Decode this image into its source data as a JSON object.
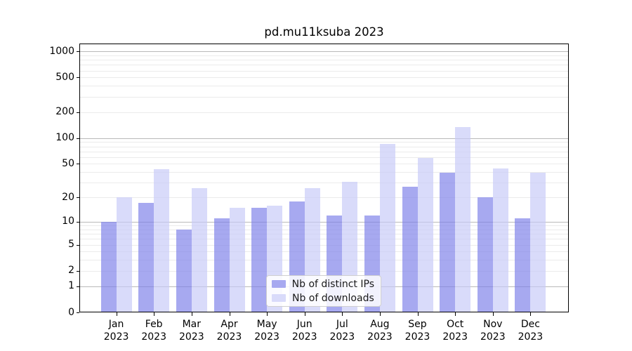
{
  "title": "pd.mu11ksuba 2023",
  "legend": {
    "items": [
      {
        "label": "Nb of distinct IPs",
        "color": "#a7a9f0"
      },
      {
        "label": "Nb of downloads",
        "color": "#d9dbfa"
      }
    ]
  },
  "chart_data": {
    "type": "bar",
    "title": "pd.mu11ksuba 2023",
    "categories": [
      "Jan 2023",
      "Feb 2023",
      "Mar 2023",
      "Apr 2023",
      "May 2023",
      "Jun 2023",
      "Jul 2023",
      "Aug 2023",
      "Sep 2023",
      "Oct 2023",
      "Nov 2023",
      "Dec 2023"
    ],
    "series": [
      {
        "name": "Nb of distinct IPs",
        "color": "#a7a9f0",
        "fill": "rgba(126,128,233,0.68)",
        "values": [
          10,
          17,
          8,
          11,
          15,
          18,
          12,
          12,
          27,
          39,
          20,
          11
        ]
      },
      {
        "name": "Nb of downloads",
        "color": "#d9dbfa",
        "fill": "rgba(199,202,248,0.68)",
        "values": [
          20,
          43,
          26,
          15,
          16,
          26,
          31,
          85,
          59,
          135,
          44,
          39
        ]
      }
    ],
    "xlabel": "",
    "ylabel": "",
    "yscale": "log1p",
    "ylim": [
      0,
      1230
    ],
    "yticks": [
      1000,
      500,
      200,
      100,
      50,
      20,
      10,
      5,
      2,
      1,
      0
    ],
    "grid_major": [
      1,
      10,
      100,
      1000
    ],
    "grid_minor": [
      2,
      3,
      4,
      5,
      6,
      7,
      8,
      9,
      20,
      30,
      40,
      50,
      60,
      70,
      80,
      90,
      200,
      300,
      400,
      500,
      600,
      700,
      800,
      900
    ],
    "grid": true,
    "legend_position": "lower center"
  }
}
